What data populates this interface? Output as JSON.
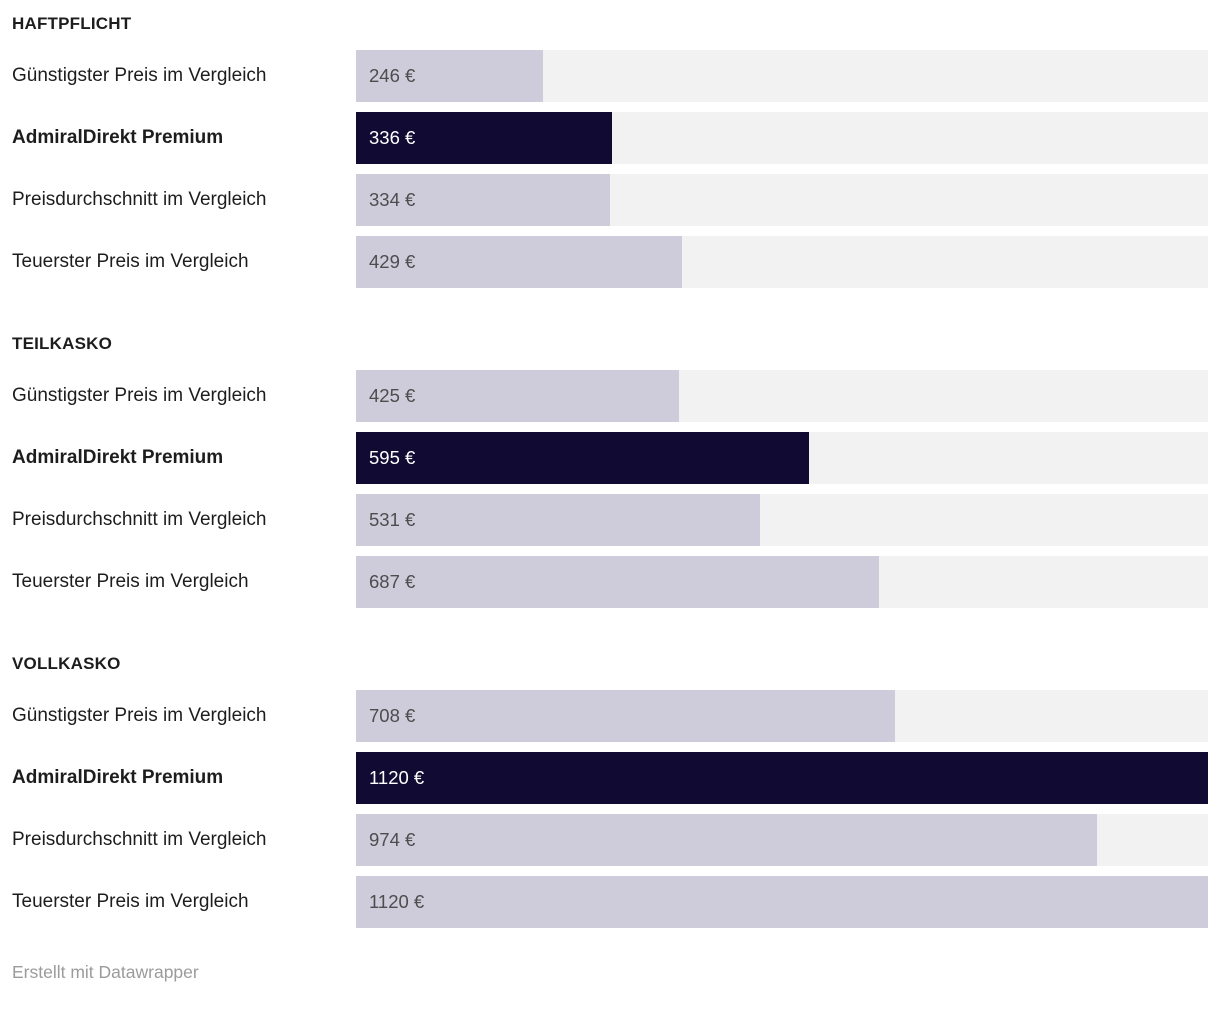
{
  "chart_data": {
    "type": "bar",
    "orientation": "horizontal",
    "unit": "€",
    "max": 1120,
    "xlim": [
      0,
      1120
    ],
    "grid": false,
    "legend": "none",
    "colors": {
      "bar_default": "#ceccda",
      "bar_highlight": "#110b33",
      "track_background": "#f2f2f2",
      "label_text": "#1d1d1d",
      "value_text_on_light": "#4d4d4d",
      "value_text_on_dark": "#ffffff",
      "footer_text": "#9b9b9b"
    },
    "sections": [
      {
        "title": "HAFTPFLICHT",
        "rows": [
          {
            "label": "Günstigster Preis im Vergleich",
            "value": 246,
            "display": "246 €",
            "highlight": false
          },
          {
            "label": "AdmiralDirekt Premium",
            "value": 336,
            "display": "336 €",
            "highlight": true
          },
          {
            "label": "Preisdurchschnitt im Vergleich",
            "value": 334,
            "display": "334 €",
            "highlight": false
          },
          {
            "label": "Teuerster Preis im Vergleich",
            "value": 429,
            "display": "429 €",
            "highlight": false
          }
        ]
      },
      {
        "title": "TEILKASKO",
        "rows": [
          {
            "label": "Günstigster Preis im Vergleich",
            "value": 425,
            "display": "425 €",
            "highlight": false
          },
          {
            "label": "AdmiralDirekt Premium",
            "value": 595,
            "display": "595 €",
            "highlight": true
          },
          {
            "label": "Preisdurchschnitt im Vergleich",
            "value": 531,
            "display": "531 €",
            "highlight": false
          },
          {
            "label": "Teuerster Preis im Vergleich",
            "value": 687,
            "display": "687 €",
            "highlight": false
          }
        ]
      },
      {
        "title": "VOLLKASKO",
        "rows": [
          {
            "label": "Günstigster Preis im Vergleich",
            "value": 708,
            "display": "708 €",
            "highlight": false
          },
          {
            "label": "AdmiralDirekt Premium",
            "value": 1120,
            "display": "1120 €",
            "highlight": true
          },
          {
            "label": "Preisdurchschnitt im Vergleich",
            "value": 974,
            "display": "974 €",
            "highlight": false
          },
          {
            "label": "Teuerster Preis im Vergleich",
            "value": 1120,
            "display": "1120 €",
            "highlight": false
          }
        ]
      }
    ]
  },
  "footer": {
    "text": "Erstellt mit Datawrapper"
  }
}
